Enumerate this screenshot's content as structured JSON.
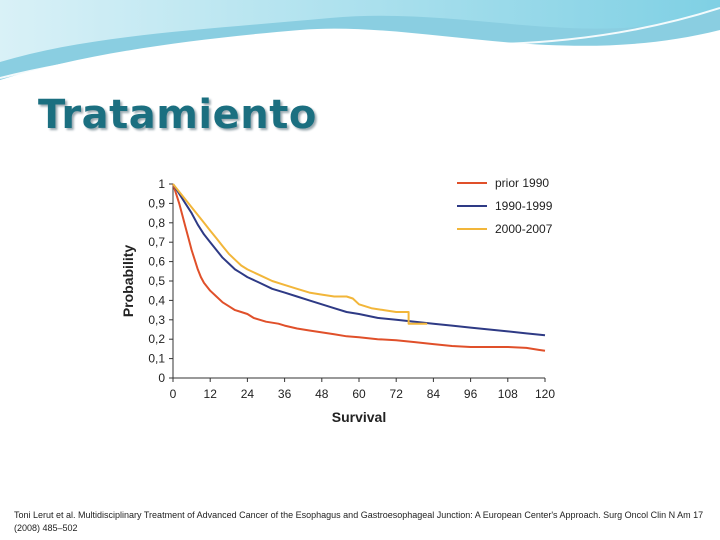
{
  "slide": {
    "title": "Tratamiento",
    "citation": "Toni Lerut et al. Multidisciplinary Treatment of Advanced Cancer of the Esophagus and Gastroesophageal Junction: A European Center's Approach. Surg Oncol Clin N Am 17 (2008) 485–502",
    "header_colors": [
      "#2aa6c9",
      "#7fd0e4",
      "#d9f1f7"
    ],
    "title_color": "#1b6f80"
  },
  "chart_data": {
    "type": "line",
    "title": "",
    "xlabel": "Survival",
    "ylabel": "Probability",
    "xlim": [
      0,
      120
    ],
    "ylim": [
      0,
      1
    ],
    "x_ticks": [
      "0",
      "12",
      "24",
      "36",
      "48",
      "60",
      "72",
      "84",
      "96",
      "108",
      "120"
    ],
    "y_ticks": [
      "0",
      "0,1",
      "0,2",
      "0,3",
      "0,4",
      "0,5",
      "0,6",
      "0,7",
      "0,8",
      "0,9",
      "1"
    ],
    "x_tick_values": [
      0,
      12,
      24,
      36,
      48,
      60,
      72,
      84,
      96,
      108,
      120
    ],
    "y_tick_values": [
      0,
      0.1,
      0.2,
      0.3,
      0.4,
      0.5,
      0.6,
      0.7,
      0.8,
      0.9,
      1
    ],
    "grid": false,
    "legend_position": "top-right",
    "series": [
      {
        "name": "prior 1990",
        "color": "#e0502a",
        "points": [
          [
            0,
            1
          ],
          [
            1,
            0.95
          ],
          [
            2,
            0.9
          ],
          [
            3,
            0.84
          ],
          [
            4,
            0.78
          ],
          [
            5,
            0.72
          ],
          [
            6,
            0.66
          ],
          [
            7,
            0.61
          ],
          [
            8,
            0.56
          ],
          [
            9,
            0.52
          ],
          [
            10,
            0.49
          ],
          [
            12,
            0.45
          ],
          [
            14,
            0.42
          ],
          [
            16,
            0.39
          ],
          [
            18,
            0.37
          ],
          [
            20,
            0.35
          ],
          [
            22,
            0.34
          ],
          [
            24,
            0.33
          ],
          [
            26,
            0.31
          ],
          [
            28,
            0.3
          ],
          [
            30,
            0.29
          ],
          [
            32,
            0.285
          ],
          [
            34,
            0.28
          ],
          [
            36,
            0.27
          ],
          [
            40,
            0.255
          ],
          [
            44,
            0.245
          ],
          [
            48,
            0.235
          ],
          [
            52,
            0.225
          ],
          [
            56,
            0.215
          ],
          [
            60,
            0.21
          ],
          [
            66,
            0.2
          ],
          [
            72,
            0.195
          ],
          [
            78,
            0.185
          ],
          [
            84,
            0.175
          ],
          [
            90,
            0.165
          ],
          [
            96,
            0.16
          ],
          [
            108,
            0.16
          ],
          [
            114,
            0.155
          ],
          [
            118,
            0.145
          ],
          [
            120,
            0.14
          ]
        ]
      },
      {
        "name": "1990-1999",
        "color": "#2e3a85",
        "points": [
          [
            0,
            1
          ],
          [
            2,
            0.95
          ],
          [
            4,
            0.9
          ],
          [
            6,
            0.85
          ],
          [
            8,
            0.79
          ],
          [
            10,
            0.74
          ],
          [
            12,
            0.7
          ],
          [
            14,
            0.66
          ],
          [
            16,
            0.62
          ],
          [
            18,
            0.59
          ],
          [
            20,
            0.56
          ],
          [
            22,
            0.54
          ],
          [
            24,
            0.52
          ],
          [
            28,
            0.49
          ],
          [
            32,
            0.46
          ],
          [
            36,
            0.44
          ],
          [
            40,
            0.42
          ],
          [
            44,
            0.4
          ],
          [
            48,
            0.38
          ],
          [
            52,
            0.36
          ],
          [
            56,
            0.34
          ],
          [
            60,
            0.33
          ],
          [
            66,
            0.31
          ],
          [
            72,
            0.3
          ],
          [
            78,
            0.29
          ],
          [
            84,
            0.28
          ],
          [
            90,
            0.27
          ],
          [
            96,
            0.26
          ],
          [
            102,
            0.25
          ],
          [
            108,
            0.24
          ],
          [
            114,
            0.23
          ],
          [
            120,
            0.22
          ]
        ]
      },
      {
        "name": "2000-2007",
        "color": "#f2b63a",
        "points": [
          [
            0,
            1
          ],
          [
            2,
            0.96
          ],
          [
            4,
            0.92
          ],
          [
            6,
            0.88
          ],
          [
            8,
            0.84
          ],
          [
            10,
            0.8
          ],
          [
            12,
            0.76
          ],
          [
            14,
            0.72
          ],
          [
            16,
            0.68
          ],
          [
            18,
            0.64
          ],
          [
            20,
            0.61
          ],
          [
            22,
            0.58
          ],
          [
            24,
            0.56
          ],
          [
            28,
            0.53
          ],
          [
            32,
            0.5
          ],
          [
            36,
            0.48
          ],
          [
            40,
            0.46
          ],
          [
            44,
            0.44
          ],
          [
            48,
            0.43
          ],
          [
            52,
            0.42
          ],
          [
            56,
            0.42
          ],
          [
            58,
            0.41
          ],
          [
            60,
            0.38
          ],
          [
            64,
            0.36
          ],
          [
            68,
            0.35
          ],
          [
            72,
            0.34
          ],
          [
            76,
            0.34
          ],
          [
            76,
            0.28
          ],
          [
            80,
            0.28
          ],
          [
            82,
            0.28
          ]
        ]
      }
    ]
  }
}
